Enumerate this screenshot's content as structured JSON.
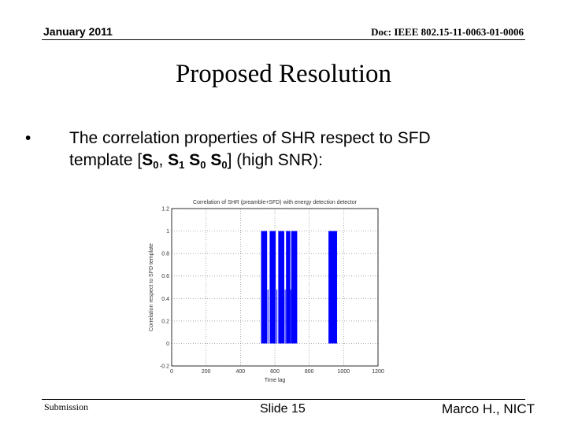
{
  "header": {
    "date": "January 2011",
    "doc_id": "Doc: IEEE 802.15-11-0063-01-0006"
  },
  "slide": {
    "title": "Proposed Resolution",
    "bullet_marker": "•",
    "bullet_text": {
      "line1": "The correlation properties of SHR respect to SFD",
      "line2_prefix": "template [",
      "s": "S",
      "sub0": "0",
      "sub1": "1",
      "comma": ",",
      "suffix": "] (high SNR):"
    }
  },
  "chart_data": {
    "type": "bar",
    "title": "Correlation of SHR (preamble+SFD) with energy detection detector",
    "xlabel": "Time lag",
    "ylabel": "Correlation respect to SFD template",
    "xlim": [
      0,
      1200
    ],
    "ylim": [
      -0.2,
      1.2
    ],
    "x_ticks": [
      "0",
      "200",
      "400",
      "600",
      "800",
      "1000",
      "1200"
    ],
    "y_ticks": [
      "-0.2",
      "0",
      "0.2",
      "0.4",
      "0.6",
      "0.8",
      "1",
      "1.2"
    ],
    "grid": true,
    "bar_color": "#0000ff",
    "bars": [
      {
        "x0": 520,
        "x1": 555,
        "y0": 0,
        "y1": 1
      },
      {
        "x0": 570,
        "x1": 605,
        "y0": 0,
        "y1": 1
      },
      {
        "x0": 620,
        "x1": 655,
        "y0": 0,
        "y1": 1
      },
      {
        "x0": 665,
        "x1": 690,
        "y0": 0,
        "y1": 1
      },
      {
        "x0": 695,
        "x1": 730,
        "y0": 0,
        "y1": 1
      },
      {
        "x0": 912,
        "x1": 962,
        "y0": 0,
        "y1": 1
      }
    ],
    "gaps_above": [
      {
        "x": 560,
        "y0": 0,
        "y1": 0.48
      },
      {
        "x": 612,
        "y0": 0,
        "y1": 0.48
      },
      {
        "x": 660,
        "y0": 0,
        "y1": 0.48
      },
      {
        "x": 692,
        "y0": 0,
        "y1": 0.48
      }
    ]
  },
  "footer": {
    "left": "Submission",
    "center": "Slide 15",
    "right": "Marco H., NICT"
  }
}
